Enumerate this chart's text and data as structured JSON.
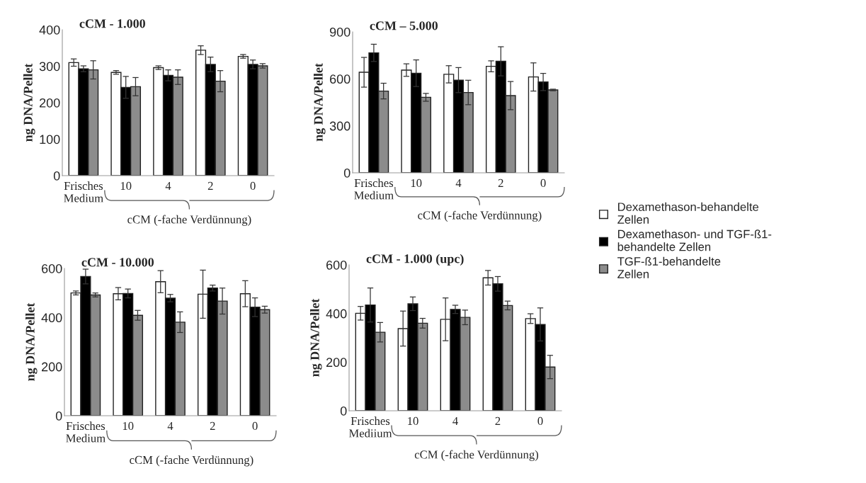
{
  "chart_data": [
    {
      "type": "bar",
      "title": "cCM - 1.000",
      "xlabel": "cCM (-fache Verdünnung)",
      "ylabel": "ng DNA/Pellet",
      "categories": [
        "Frisches\nMedium",
        "10",
        "4",
        "2",
        "0"
      ],
      "ylim": [
        0,
        400
      ],
      "yticks": [
        0,
        100,
        200,
        300,
        400
      ],
      "legend": "right",
      "series": [
        {
          "name": "Dexamethason-behandelte\nZellen",
          "color": "#ffffff",
          "values": [
            310,
            283,
            296,
            344,
            327
          ],
          "errors": [
            10,
            5,
            5,
            12,
            5
          ]
        },
        {
          "name": "Dexamethason- und TGF-ß1-\nbehandelte Zellen",
          "color": "#000000",
          "values": [
            293,
            242,
            275,
            305,
            305
          ],
          "errors": [
            8,
            30,
            15,
            20,
            12
          ]
        },
        {
          "name": "TGF-ß1-behandelte\nZellen",
          "color": "#8c8c8c",
          "values": [
            290,
            244,
            270,
            259,
            301
          ],
          "errors": [
            25,
            25,
            20,
            29,
            6
          ]
        }
      ]
    },
    {
      "type": "bar",
      "title": "cCM – 5.000",
      "xlabel": "cCM (-fache Verdünnung)",
      "ylabel": "ng DNA/Pellet",
      "categories": [
        "Frisches\nMedium",
        "10",
        "4",
        "2",
        "0"
      ],
      "ylim": [
        0,
        900
      ],
      "yticks": [
        0,
        300,
        600,
        900
      ],
      "series": [
        {
          "color": "#ffffff",
          "values": [
            642,
            656,
            629,
            680,
            612
          ],
          "errors": [
            95,
            40,
            55,
            35,
            90
          ]
        },
        {
          "color": "#000000",
          "values": [
            766,
            636,
            592,
            712,
            580
          ],
          "errors": [
            55,
            85,
            80,
            93,
            55
          ]
        },
        {
          "color": "#8c8c8c",
          "values": [
            522,
            482,
            513,
            493,
            529
          ],
          "errors": [
            50,
            25,
            78,
            90,
            5
          ]
        }
      ]
    },
    {
      "type": "bar",
      "title": "cCM - 10.000",
      "xlabel": "cCM (-fache Verdünnung)",
      "ylabel": "ng DNA/Pellet",
      "categories": [
        "Frisches\nMedium",
        "10",
        "4",
        "2",
        "0"
      ],
      "ylim": [
        0,
        600
      ],
      "yticks": [
        0,
        200,
        400,
        600
      ],
      "series": [
        {
          "color": "#ffffff",
          "values": [
            500,
            497,
            546,
            495,
            497
          ],
          "errors": [
            8,
            25,
            45,
            98,
            53
          ]
        },
        {
          "color": "#000000",
          "values": [
            567,
            498,
            479,
            520,
            442
          ],
          "errors": [
            30,
            18,
            15,
            12,
            38
          ]
        },
        {
          "color": "#8c8c8c",
          "values": [
            492,
            409,
            381,
            467,
            432
          ],
          "errors": [
            8,
            20,
            42,
            53,
            14
          ]
        }
      ]
    },
    {
      "type": "bar",
      "title": "cCM - 1.000 (upc)",
      "xlabel": "cCM (-fache Verdünnung)",
      "ylabel": "ng DNA/Pellet",
      "categories": [
        "Frisches\nMediium",
        "10",
        "4",
        "2",
        "0"
      ],
      "ylim": [
        0,
        600
      ],
      "yticks": [
        0,
        200,
        400,
        600
      ],
      "series": [
        {
          "color": "#ffffff",
          "values": [
            401,
            338,
            376,
            547,
            379
          ],
          "errors": [
            28,
            72,
            88,
            30,
            20
          ]
        },
        {
          "color": "#000000",
          "values": [
            435,
            440,
            417,
            522,
            355
          ],
          "errors": [
            70,
            28,
            17,
            30,
            68
          ]
        },
        {
          "color": "#8c8c8c",
          "values": [
            323,
            360,
            384,
            433,
            180
          ],
          "errors": [
            40,
            20,
            30,
            18,
            48
          ]
        }
      ]
    }
  ]
}
